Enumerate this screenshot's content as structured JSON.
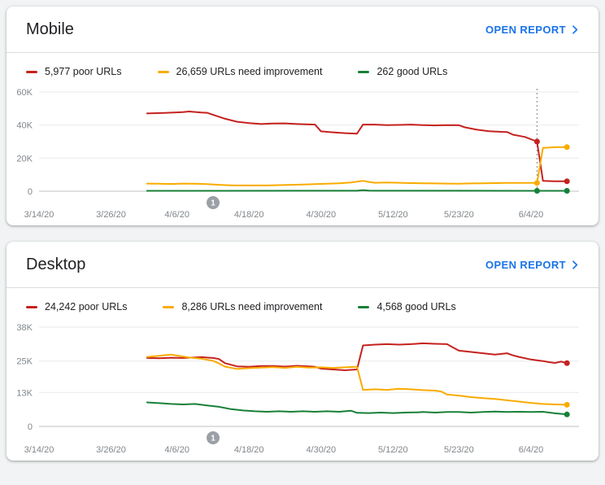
{
  "page": {
    "background": "#f1f3f4",
    "accent": "#1a73e8"
  },
  "cards": [
    {
      "title": "Mobile",
      "open_report_label": "OPEN REPORT",
      "legend": [
        {
          "label": "5,977 poor URLs",
          "color": "#c5221f"
        },
        {
          "label": "26,659 URLs need improvement",
          "color": "#f9ab00"
        },
        {
          "label": "262 good URLs",
          "color": "#188038"
        }
      ]
    },
    {
      "title": "Desktop",
      "open_report_label": "OPEN REPORT",
      "legend": [
        {
          "label": "24,242 poor URLs",
          "color": "#c5221f"
        },
        {
          "label": "8,286 URLs need improvement",
          "color": "#f9ab00"
        },
        {
          "label": "4,568 good URLs",
          "color": "#188038"
        }
      ]
    }
  ],
  "chart_data": [
    {
      "type": "line",
      "title": "Mobile Core Web Vitals URLs over time",
      "xlim": [
        0,
        90
      ],
      "ylim": [
        0,
        60000
      ],
      "xticks": [
        {
          "value": 0,
          "label": "3/14/20"
        },
        {
          "value": 12,
          "label": "3/26/20"
        },
        {
          "value": 23,
          "label": "4/6/20"
        },
        {
          "value": 35,
          "label": "4/18/20"
        },
        {
          "value": 47,
          "label": "4/30/20"
        },
        {
          "value": 59,
          "label": "5/12/20"
        },
        {
          "value": 70,
          "label": "5/23/20"
        },
        {
          "value": 82,
          "label": "6/4/20"
        }
      ],
      "yticks": [
        {
          "value": 0,
          "label": "0"
        },
        {
          "value": 20000,
          "label": "20K"
        },
        {
          "value": 40000,
          "label": "40K"
        },
        {
          "value": 60000,
          "label": "60K"
        }
      ],
      "vline": {
        "x": 83
      },
      "marker": {
        "x": 29,
        "label": "1"
      },
      "series": [
        {
          "name": "poor URLs",
          "color": "#c5221f",
          "points": [
            [
              18,
              47000
            ],
            [
              21,
              47300
            ],
            [
              24,
              47800
            ],
            [
              25,
              48200
            ],
            [
              27,
              47600
            ],
            [
              28,
              47400
            ],
            [
              29,
              46200
            ],
            [
              31,
              43800
            ],
            [
              33,
              42000
            ],
            [
              35,
              41200
            ],
            [
              37,
              40600
            ],
            [
              39,
              40900
            ],
            [
              41,
              41000
            ],
            [
              43,
              40600
            ],
            [
              45,
              40400
            ],
            [
              46,
              40300
            ],
            [
              47,
              36200
            ],
            [
              49,
              35600
            ],
            [
              51,
              35100
            ],
            [
              53,
              34800
            ],
            [
              54,
              40300
            ],
            [
              56,
              40300
            ],
            [
              58,
              40000
            ],
            [
              60,
              40100
            ],
            [
              62,
              40300
            ],
            [
              64,
              40000
            ],
            [
              66,
              39800
            ],
            [
              68,
              40000
            ],
            [
              70,
              39900
            ],
            [
              71,
              38600
            ],
            [
              73,
              37200
            ],
            [
              75,
              36300
            ],
            [
              77,
              35900
            ],
            [
              78,
              35800
            ],
            [
              79,
              34200
            ],
            [
              81,
              32800
            ],
            [
              83,
              30000
            ],
            [
              84,
              6300
            ],
            [
              86,
              6000
            ],
            [
              88,
              5977
            ]
          ],
          "dots": [
            [
              83,
              30000
            ],
            [
              88,
              5977
            ]
          ]
        },
        {
          "name": "URLs need improvement",
          "color": "#f9ab00",
          "points": [
            [
              18,
              4600
            ],
            [
              20,
              4500
            ],
            [
              22,
              4400
            ],
            [
              24,
              4600
            ],
            [
              26,
              4500
            ],
            [
              28,
              4300
            ],
            [
              30,
              3900
            ],
            [
              32,
              3600
            ],
            [
              34,
              3500
            ],
            [
              36,
              3500
            ],
            [
              38,
              3500
            ],
            [
              40,
              3700
            ],
            [
              42,
              3900
            ],
            [
              44,
              4100
            ],
            [
              46,
              4300
            ],
            [
              48,
              4500
            ],
            [
              50,
              4800
            ],
            [
              52,
              5300
            ],
            [
              54,
              6300
            ],
            [
              55,
              5600
            ],
            [
              56,
              5100
            ],
            [
              58,
              5300
            ],
            [
              60,
              5100
            ],
            [
              62,
              4900
            ],
            [
              64,
              4800
            ],
            [
              66,
              4700
            ],
            [
              68,
              4600
            ],
            [
              70,
              4500
            ],
            [
              72,
              4700
            ],
            [
              74,
              4800
            ],
            [
              76,
              4900
            ],
            [
              78,
              5000
            ],
            [
              80,
              5000
            ],
            [
              82,
              5000
            ],
            [
              83,
              5000
            ],
            [
              84,
              26200
            ],
            [
              86,
              26600
            ],
            [
              88,
              26659
            ]
          ],
          "dots": [
            [
              83,
              5000
            ],
            [
              88,
              26659
            ]
          ]
        },
        {
          "name": "good URLs",
          "color": "#188038",
          "points": [
            [
              18,
              260
            ],
            [
              30,
              250
            ],
            [
              45,
              280
            ],
            [
              53,
              300
            ],
            [
              54,
              700
            ],
            [
              55,
              400
            ],
            [
              57,
              300
            ],
            [
              70,
              280
            ],
            [
              83,
              262
            ],
            [
              88,
              262
            ]
          ],
          "dots": [
            [
              83,
              262
            ],
            [
              88,
              262
            ]
          ]
        }
      ]
    },
    {
      "type": "line",
      "title": "Desktop Core Web Vitals URLs over time",
      "xlim": [
        0,
        90
      ],
      "ylim": [
        0,
        38000
      ],
      "xticks": [
        {
          "value": 0,
          "label": "3/14/20"
        },
        {
          "value": 12,
          "label": "3/26/20"
        },
        {
          "value": 23,
          "label": "4/6/20"
        },
        {
          "value": 35,
          "label": "4/18/20"
        },
        {
          "value": 47,
          "label": "4/30/20"
        },
        {
          "value": 59,
          "label": "5/12/20"
        },
        {
          "value": 70,
          "label": "5/23/20"
        },
        {
          "value": 82,
          "label": "6/4/20"
        }
      ],
      "yticks": [
        {
          "value": 0,
          "label": "0"
        },
        {
          "value": 13000,
          "label": "13K"
        },
        {
          "value": 25000,
          "label": "25K"
        },
        {
          "value": 38000,
          "label": "38K"
        }
      ],
      "marker": {
        "x": 29,
        "label": "1"
      },
      "series": [
        {
          "name": "poor URLs",
          "color": "#c5221f",
          "points": [
            [
              18,
              26200
            ],
            [
              20,
              26100
            ],
            [
              22,
              26300
            ],
            [
              24,
              26200
            ],
            [
              26,
              26400
            ],
            [
              27,
              26500
            ],
            [
              29,
              26200
            ],
            [
              30,
              25800
            ],
            [
              31,
              24200
            ],
            [
              33,
              23000
            ],
            [
              35,
              22800
            ],
            [
              37,
              23100
            ],
            [
              39,
              23100
            ],
            [
              41,
              22900
            ],
            [
              43,
              23200
            ],
            [
              45,
              23000
            ],
            [
              46,
              22800
            ],
            [
              47,
              22100
            ],
            [
              49,
              21800
            ],
            [
              51,
              21500
            ],
            [
              53,
              21800
            ],
            [
              54,
              31000
            ],
            [
              56,
              31300
            ],
            [
              58,
              31500
            ],
            [
              60,
              31300
            ],
            [
              62,
              31500
            ],
            [
              64,
              31800
            ],
            [
              66,
              31600
            ],
            [
              68,
              31500
            ],
            [
              69,
              30200
            ],
            [
              70,
              29000
            ],
            [
              72,
              28500
            ],
            [
              74,
              28000
            ],
            [
              76,
              27500
            ],
            [
              78,
              28000
            ],
            [
              79,
              27200
            ],
            [
              80,
              26600
            ],
            [
              82,
              25600
            ],
            [
              84,
              25000
            ],
            [
              85,
              24600
            ],
            [
              86,
              24300
            ],
            [
              87,
              24800
            ],
            [
              88,
              24242
            ]
          ],
          "dots": [
            [
              88,
              24242
            ]
          ]
        },
        {
          "name": "URLs need improvement",
          "color": "#f9ab00",
          "points": [
            [
              18,
              26600
            ],
            [
              20,
              27000
            ],
            [
              22,
              27500
            ],
            [
              23,
              27100
            ],
            [
              25,
              26400
            ],
            [
              27,
              25900
            ],
            [
              29,
              25100
            ],
            [
              30,
              24100
            ],
            [
              31,
              22900
            ],
            [
              33,
              22000
            ],
            [
              35,
              22300
            ],
            [
              37,
              22500
            ],
            [
              39,
              22700
            ],
            [
              41,
              22400
            ],
            [
              43,
              22800
            ],
            [
              45,
              22500
            ],
            [
              47,
              22600
            ],
            [
              49,
              22400
            ],
            [
              51,
              22600
            ],
            [
              53,
              22800
            ],
            [
              54,
              14000
            ],
            [
              56,
              14200
            ],
            [
              58,
              14000
            ],
            [
              60,
              14400
            ],
            [
              62,
              14200
            ],
            [
              64,
              13900
            ],
            [
              66,
              13700
            ],
            [
              67,
              13400
            ],
            [
              68,
              12200
            ],
            [
              70,
              11800
            ],
            [
              72,
              11200
            ],
            [
              74,
              10800
            ],
            [
              76,
              10500
            ],
            [
              78,
              10000
            ],
            [
              80,
              9500
            ],
            [
              82,
              9000
            ],
            [
              84,
              8600
            ],
            [
              86,
              8400
            ],
            [
              88,
              8286
            ]
          ],
          "dots": [
            [
              88,
              8286
            ]
          ]
        },
        {
          "name": "good URLs",
          "color": "#188038",
          "points": [
            [
              18,
              9200
            ],
            [
              20,
              8900
            ],
            [
              22,
              8600
            ],
            [
              24,
              8400
            ],
            [
              26,
              8600
            ],
            [
              28,
              8000
            ],
            [
              30,
              7500
            ],
            [
              32,
              6600
            ],
            [
              34,
              6100
            ],
            [
              36,
              5800
            ],
            [
              38,
              5600
            ],
            [
              40,
              5800
            ],
            [
              42,
              5600
            ],
            [
              44,
              5800
            ],
            [
              46,
              5600
            ],
            [
              48,
              5800
            ],
            [
              50,
              5600
            ],
            [
              52,
              6000
            ],
            [
              53,
              5200
            ],
            [
              55,
              5100
            ],
            [
              57,
              5300
            ],
            [
              59,
              5100
            ],
            [
              61,
              5300
            ],
            [
              63,
              5400
            ],
            [
              64,
              5500
            ],
            [
              66,
              5300
            ],
            [
              68,
              5500
            ],
            [
              70,
              5500
            ],
            [
              72,
              5300
            ],
            [
              74,
              5500
            ],
            [
              76,
              5700
            ],
            [
              78,
              5500
            ],
            [
              80,
              5600
            ],
            [
              82,
              5500
            ],
            [
              84,
              5600
            ],
            [
              86,
              5000
            ],
            [
              88,
              4568
            ]
          ],
          "dots": [
            [
              88,
              4568
            ]
          ]
        }
      ]
    }
  ]
}
